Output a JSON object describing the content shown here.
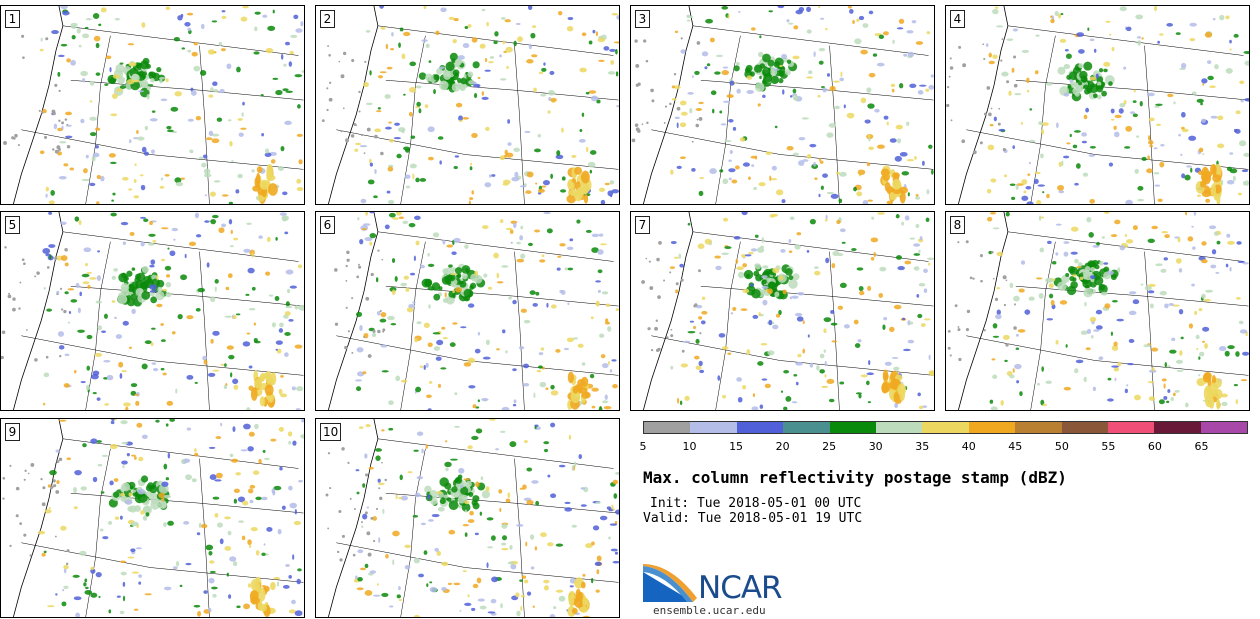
{
  "panels": [
    {
      "label": "1"
    },
    {
      "label": "2"
    },
    {
      "label": "3"
    },
    {
      "label": "4"
    },
    {
      "label": "5"
    },
    {
      "label": "6"
    },
    {
      "label": "7"
    },
    {
      "label": "8"
    },
    {
      "label": "9"
    },
    {
      "label": "10"
    }
  ],
  "colorbar": {
    "colors": [
      "#a0a0a0",
      "#b4bce8",
      "#5060d8",
      "#4a9090",
      "#0a8a0a",
      "#bcdcbc",
      "#ecd860",
      "#f0a820",
      "#b88030",
      "#8a5838",
      "#f05078",
      "#6a1838",
      "#a848a8"
    ],
    "ticks": [
      "5",
      "10",
      "15",
      "20",
      "25",
      "30",
      "35",
      "40",
      "45",
      "50",
      "55",
      "60",
      "65"
    ]
  },
  "title": "Max. column reflectivity postage stamp (dBZ)",
  "init": "Init: Tue 2018-05-01 00 UTC",
  "valid": "Valid: Tue 2018-05-01 19 UTC",
  "logo": {
    "name": "NCAR",
    "url": "ensemble.ucar.edu"
  }
}
